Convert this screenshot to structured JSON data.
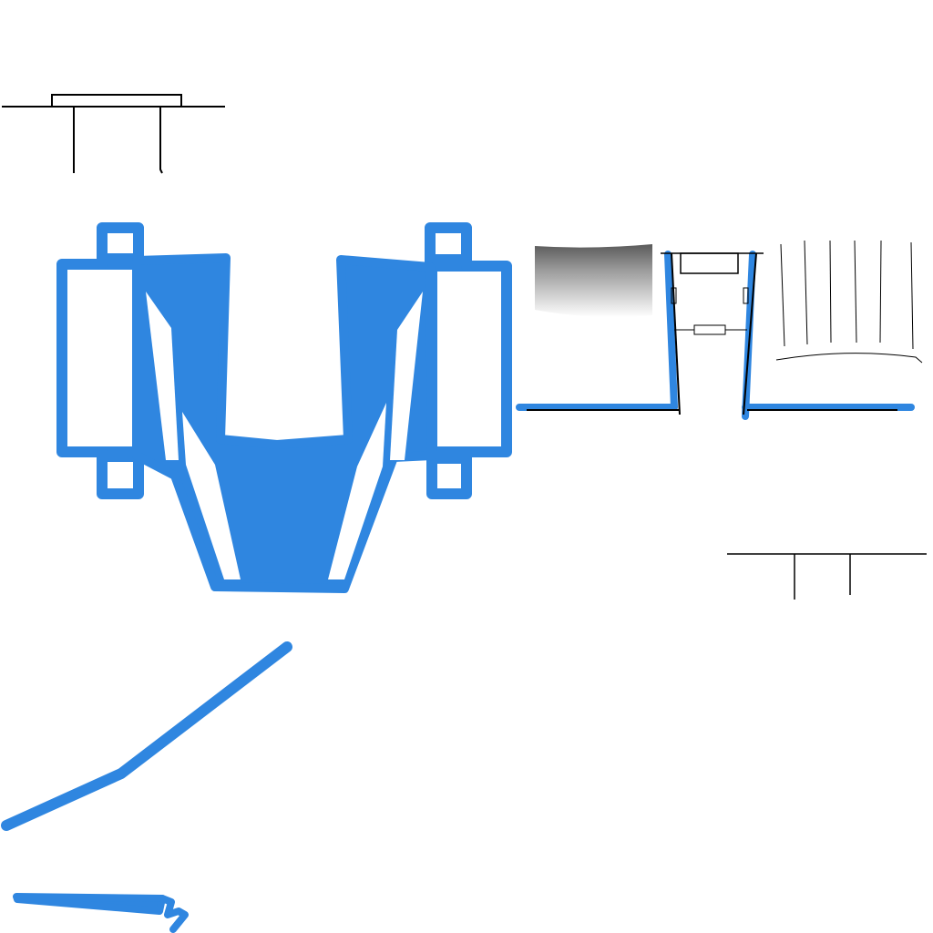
{
  "colors": {
    "background": "#ffffff",
    "accent_blue": "#2f86e0",
    "line_black": "#000000",
    "gradient_dark": "#555555",
    "gradient_light": "#ffffff"
  },
  "icons": [
    "table-top-sketch-icon",
    "u-shaped-machine-icon",
    "gradient-panel-icon",
    "channel-frame-icon",
    "vertical-lines-sketch-icon",
    "t-bar-sketch-icon",
    "diagonal-stroke-icon",
    "bottom-stroke-icon"
  ]
}
